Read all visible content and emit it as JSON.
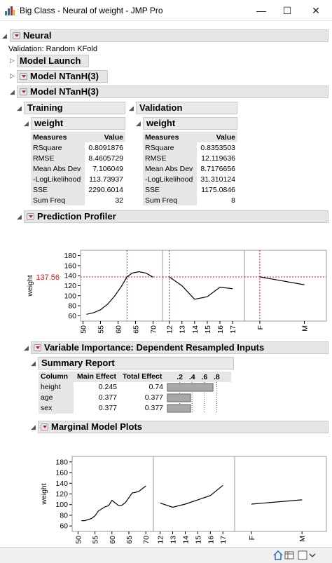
{
  "window": {
    "title": "Big Class - Neural of weight - JMP Pro",
    "minimize_glyph": "—",
    "maximize_glyph": "☐",
    "close_glyph": "✕"
  },
  "report": {
    "neural_title": "Neural",
    "validation_text": "Validation: Random KFold",
    "model_launch": "Model Launch",
    "model_ntanh_collapsed": "Model NTanH(3)",
    "model_ntanh": "Model NTanH(3)"
  },
  "training": {
    "title": "Training",
    "subtitle": "weight",
    "headers": [
      "Measures",
      "Value"
    ],
    "rows": [
      [
        "RSquare",
        "0.8091876"
      ],
      [
        "RMSE",
        "8.4605729"
      ],
      [
        "Mean Abs Dev",
        "7.106049"
      ],
      [
        "-LogLikelihood",
        "113.73937"
      ],
      [
        "SSE",
        "2290.6014"
      ],
      [
        "Sum Freq",
        "32"
      ]
    ]
  },
  "validation": {
    "title": "Validation",
    "subtitle": "weight",
    "headers": [
      "Measures",
      "Value"
    ],
    "rows": [
      [
        "RSquare",
        "0.8353503"
      ],
      [
        "RMSE",
        "12.119636"
      ],
      [
        "Mean Abs Dev",
        "8.7176656"
      ],
      [
        "-LogLikelihood",
        "31.310124"
      ],
      [
        "SSE",
        "1175.0846"
      ],
      [
        "Sum Freq",
        "8"
      ]
    ]
  },
  "profiler": {
    "title": "Prediction Profiler",
    "ylabel": "weight",
    "current_y": "137.56",
    "y_ticks": [
      "180",
      "160",
      "140",
      "120",
      "100",
      "80",
      "60"
    ],
    "ylim": [
      55,
      185
    ],
    "panels": [
      {
        "name": "height",
        "current": "62.55",
        "current_value": 62.55,
        "ticks": [
          "50",
          "55",
          "60",
          "65",
          "70"
        ],
        "tick_values": [
          50,
          55,
          60,
          65,
          70
        ],
        "xlim": [
          50.5,
          71.5
        ],
        "curve": [
          [
            51,
            63
          ],
          [
            53,
            66
          ],
          [
            55,
            72
          ],
          [
            57,
            83
          ],
          [
            59,
            99
          ],
          [
            61,
            119
          ],
          [
            62.55,
            137.56
          ],
          [
            64,
            145
          ],
          [
            66,
            148
          ],
          [
            68,
            145
          ],
          [
            70,
            137
          ]
        ]
      },
      {
        "name": "age",
        "current": "12",
        "current_value": 12,
        "ticks": [
          "12",
          "13",
          "14",
          "15",
          "16",
          "17"
        ],
        "tick_values": [
          12,
          13,
          14,
          15,
          16,
          17
        ],
        "xlim": [
          11.8,
          17.6
        ],
        "curve": [
          [
            12,
            137.56
          ],
          [
            13,
            120
          ],
          [
            14,
            93
          ],
          [
            15,
            98
          ],
          [
            16,
            117
          ],
          [
            17,
            114
          ]
        ]
      },
      {
        "name": "sex",
        "current": "F",
        "current_value": 0,
        "ticks": [
          "F",
          "M"
        ],
        "tick_values": [
          0,
          1
        ],
        "xlim": [
          -0.25,
          1.4
        ],
        "curve": [
          [
            0,
            137.56
          ],
          [
            1,
            122
          ]
        ]
      }
    ]
  },
  "variable_importance": {
    "title": "Variable Importance: Dependent Resampled Inputs",
    "summary_title": "Summary Report",
    "headers": [
      "Column",
      "Main Effect",
      "Total Effect"
    ],
    "bar_ticks": [
      ".2",
      ".4",
      ".6",
      ".8"
    ],
    "rows": [
      {
        "column": "height",
        "main": "0.245",
        "total": "0.74",
        "total_value": 0.74
      },
      {
        "column": "age",
        "main": "0.377",
        "total": "0.377",
        "total_value": 0.377
      },
      {
        "column": "sex",
        "main": "0.377",
        "total": "0.377",
        "total_value": 0.377
      }
    ]
  },
  "marginal": {
    "title": "Marginal Model Plots",
    "ylabel": "weight",
    "y_ticks": [
      "180",
      "160",
      "140",
      "120",
      "100",
      "80",
      "60"
    ],
    "ylim": [
      55,
      185
    ],
    "panels": [
      {
        "name": "height",
        "ticks": [
          "50",
          "55",
          "60",
          "65",
          "70"
        ],
        "tick_values": [
          50,
          55,
          60,
          65,
          70
        ],
        "xlim": [
          49.5,
          71
        ],
        "curve": [
          [
            51,
            70
          ],
          [
            52,
            70
          ],
          [
            54,
            74
          ],
          [
            55,
            79
          ],
          [
            56,
            88
          ],
          [
            58,
            96
          ],
          [
            59,
            98
          ],
          [
            60,
            108
          ],
          [
            61,
            103
          ],
          [
            62,
            98
          ],
          [
            63,
            99
          ],
          [
            64,
            104
          ],
          [
            65,
            113
          ],
          [
            66,
            122
          ],
          [
            67,
            123
          ],
          [
            68,
            125
          ],
          [
            69,
            130
          ],
          [
            70,
            135
          ]
        ]
      },
      {
        "name": "age",
        "ticks": [
          "12",
          "13",
          "14",
          "15",
          "16",
          "17"
        ],
        "tick_values": [
          12,
          13,
          14,
          15,
          16,
          17
        ],
        "xlim": [
          11.8,
          17.6
        ],
        "curve": [
          [
            12,
            103
          ],
          [
            13,
            95
          ],
          [
            14,
            101
          ],
          [
            15,
            109
          ],
          [
            16,
            117
          ],
          [
            17,
            136
          ]
        ]
      },
      {
        "name": "sex",
        "ticks": [
          "F",
          "M"
        ],
        "tick_values": [
          0,
          1
        ],
        "xlim": [
          -0.25,
          1.4
        ],
        "curve": [
          [
            0,
            101
          ],
          [
            1,
            109
          ]
        ]
      }
    ]
  },
  "colors": {
    "accent_red": "#d21d1d",
    "curve": "#000000",
    "header_gray": "#e6e6e6"
  }
}
